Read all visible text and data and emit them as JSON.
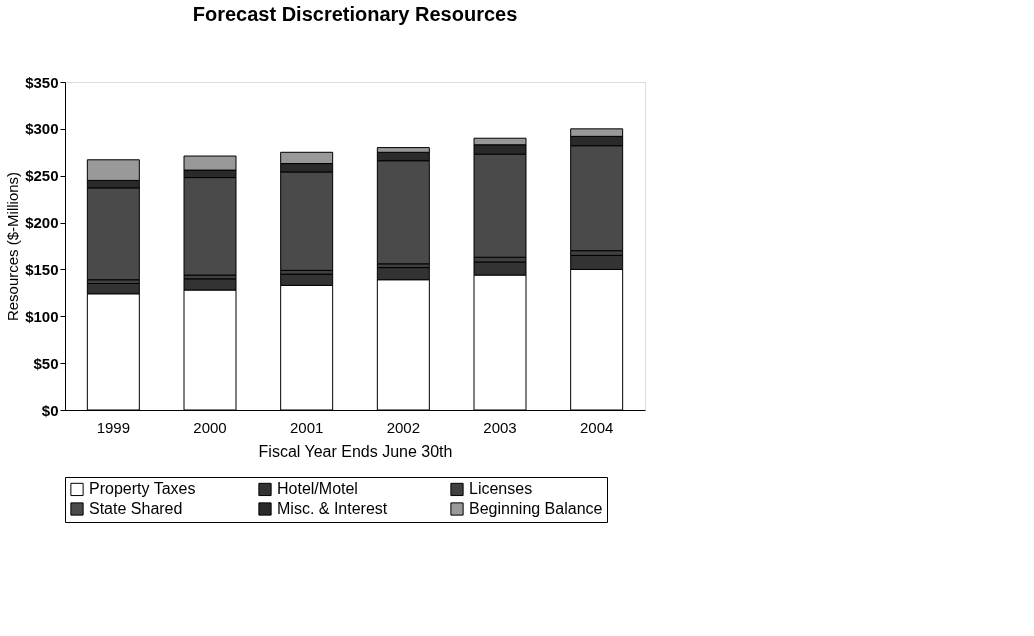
{
  "chart_data": {
    "type": "bar",
    "stacked": true,
    "title": "Forecast Discretionary Resources",
    "xlabel": "Fiscal Year Ends June 30th",
    "ylabel": "Resources ($-Millions)",
    "categories": [
      "1999",
      "2000",
      "2001",
      "2002",
      "2003",
      "2004"
    ],
    "series": [
      {
        "name": "Property Taxes",
        "color": "#ffffff",
        "values": [
          124,
          128,
          133,
          139,
          144,
          150
        ]
      },
      {
        "name": "Hotel/Motel",
        "color": "#333333",
        "values": [
          11,
          12,
          12,
          13,
          14,
          15
        ]
      },
      {
        "name": "Licenses",
        "color": "#404040",
        "values": [
          4,
          4,
          4,
          4,
          5,
          5
        ]
      },
      {
        "name": "State Shared",
        "color": "#4a4a4a",
        "values": [
          98,
          104,
          105,
          110,
          110,
          112
        ]
      },
      {
        "name": "Misc. & Interest",
        "color": "#2a2a2a",
        "values": [
          8,
          8,
          9,
          9,
          10,
          10
        ]
      },
      {
        "name": "Beginning Balance",
        "color": "#999999",
        "values": [
          22,
          15,
          12,
          5,
          7,
          8
        ]
      }
    ],
    "ylim": [
      0,
      350
    ],
    "yticks": [
      {
        "value": 0,
        "label": "$0"
      },
      {
        "value": 50,
        "label": "$50"
      },
      {
        "value": 100,
        "label": "$100"
      },
      {
        "value": 150,
        "label": "$150"
      },
      {
        "value": 200,
        "label": "$200"
      },
      {
        "value": 250,
        "label": "$250"
      },
      {
        "value": 300,
        "label": "$300"
      },
      {
        "value": 350,
        "label": "$350"
      }
    ],
    "grid": false,
    "legend": "bottom"
  }
}
